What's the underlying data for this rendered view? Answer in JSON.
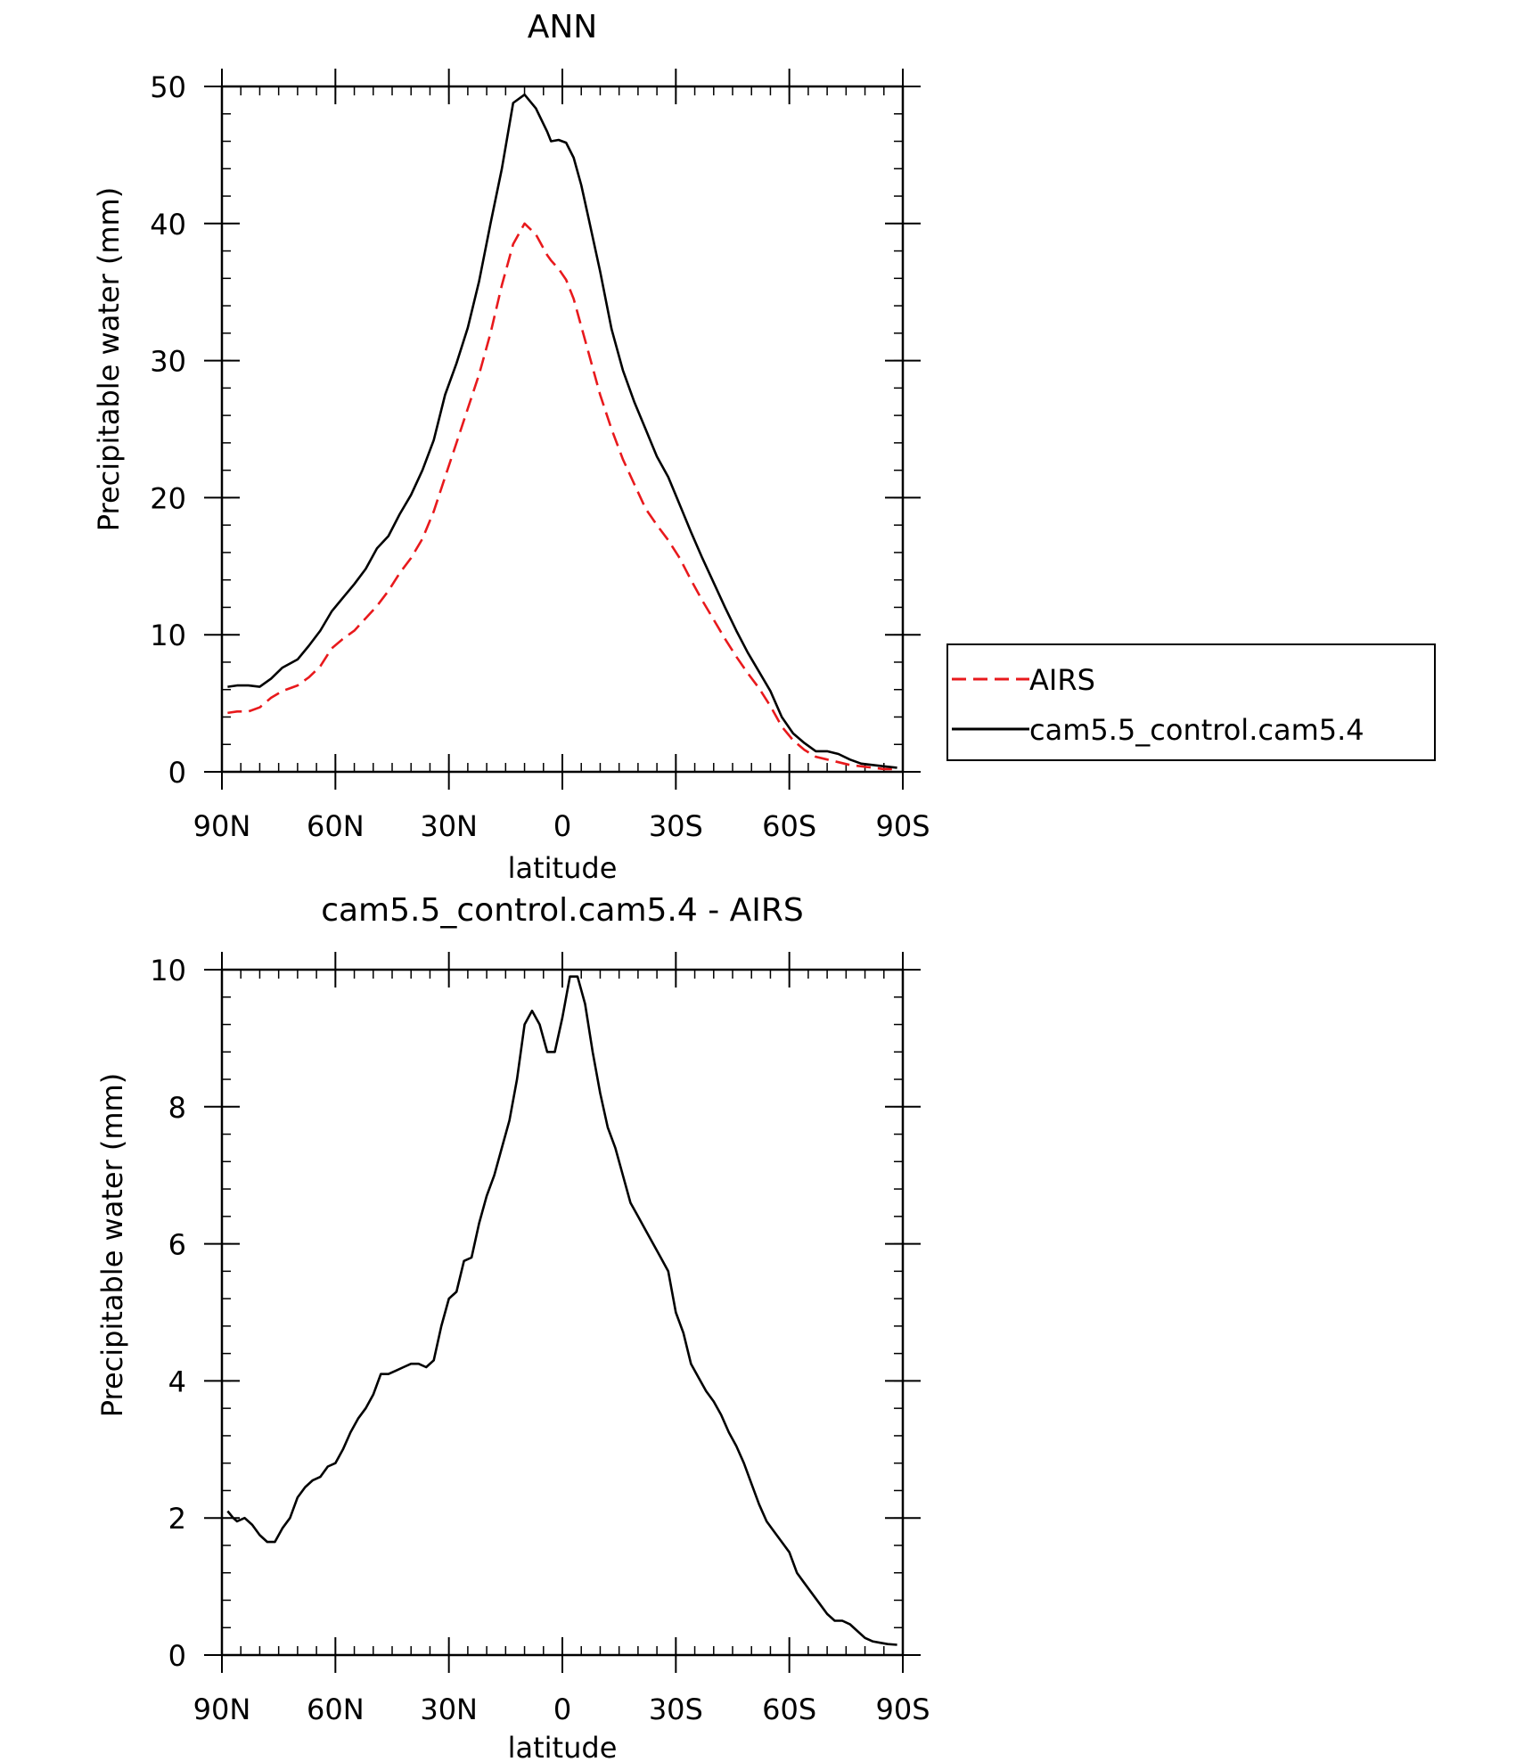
{
  "chart_data": [
    {
      "type": "line",
      "title": "ANN",
      "xlabel": "latitude",
      "ylabel": "Precipitable water (mm)",
      "ylim": [
        0,
        50
      ],
      "xlim": [
        90,
        -90
      ],
      "y_ticks": [
        0,
        10,
        20,
        30,
        40,
        50
      ],
      "y_tick_labels": [
        "0",
        "10",
        "20",
        "30",
        "40",
        "50"
      ],
      "x_ticks": [
        90,
        60,
        30,
        0,
        -30,
        -60,
        -90
      ],
      "x_tick_labels": [
        "90N",
        "60N",
        "30N",
        "0",
        "30S",
        "60S",
        "90S"
      ],
      "legend": {
        "position": "right",
        "entries": [
          "AIRS",
          "cam5.5_control.cam5.4"
        ]
      },
      "series": [
        {
          "name": "AIRS",
          "color": "#e8191c",
          "dash": "dashed",
          "x": [
            88.5,
            86,
            83,
            80,
            77,
            74,
            70,
            67,
            64,
            61,
            58,
            55,
            52,
            49,
            46,
            43,
            40,
            37,
            34,
            31,
            28,
            25,
            22,
            19,
            16,
            13,
            10,
            7,
            4,
            3,
            1,
            -1,
            -3,
            -5,
            -7,
            -10,
            -13,
            -16,
            -19,
            -22,
            -25,
            -28,
            -31,
            -34,
            -37,
            -40,
            -43,
            -46,
            -49,
            -52,
            -55,
            -58,
            -61,
            -64,
            -67,
            -70,
            -73,
            -76,
            -79,
            -82,
            -85,
            -88.5
          ],
          "y": [
            4.3,
            4.4,
            4.4,
            4.7,
            5.4,
            5.9,
            6.3,
            6.9,
            7.7,
            9.0,
            9.7,
            10.3,
            11.2,
            12.1,
            13.2,
            14.5,
            15.6,
            17.0,
            19.0,
            21.5,
            24.0,
            26.5,
            29.0,
            32.0,
            35.5,
            38.5,
            40.0,
            39.2,
            37.7,
            37.3,
            36.7,
            35.9,
            34.5,
            32.5,
            30.5,
            27.5,
            25.0,
            22.8,
            21.0,
            19.2,
            18.0,
            16.9,
            15.6,
            14.0,
            12.5,
            11.1,
            9.7,
            8.4,
            7.2,
            6.1,
            4.8,
            3.3,
            2.3,
            1.6,
            1.1,
            0.9,
            0.7,
            0.5,
            0.4,
            0.3,
            0.2,
            0.2
          ]
        },
        {
          "name": "cam5.5_control.cam5.4",
          "color": "#000000",
          "dash": "solid",
          "x": [
            88.5,
            86,
            83,
            80,
            77,
            74,
            70,
            67,
            64,
            61,
            58,
            55,
            52,
            49,
            46,
            43,
            40,
            37,
            34,
            31,
            28,
            25,
            22,
            19,
            16,
            13,
            10,
            7,
            4,
            3,
            1,
            -1,
            -3,
            -5,
            -7,
            -10,
            -13,
            -16,
            -19,
            -22,
            -25,
            -28,
            -31,
            -34,
            -37,
            -40,
            -43,
            -46,
            -49,
            -52,
            -55,
            -58,
            -61,
            -64,
            -67,
            -70,
            -73,
            -76,
            -79,
            -82,
            -85,
            -88.5
          ],
          "y": [
            6.2,
            6.3,
            6.3,
            6.2,
            6.8,
            7.6,
            8.2,
            9.2,
            10.3,
            11.7,
            12.7,
            13.7,
            14.8,
            16.3,
            17.2,
            18.8,
            20.2,
            22.0,
            24.2,
            27.5,
            29.8,
            32.4,
            35.8,
            40.0,
            44.0,
            48.8,
            49.4,
            48.4,
            46.7,
            46.0,
            46.1,
            45.9,
            44.8,
            42.8,
            40.3,
            36.5,
            32.3,
            29.3,
            27.0,
            25.0,
            23.0,
            21.5,
            19.5,
            17.5,
            15.6,
            13.8,
            12.0,
            10.3,
            8.7,
            7.3,
            5.9,
            4.0,
            2.8,
            2.1,
            1.5,
            1.5,
            1.3,
            0.9,
            0.6,
            0.5,
            0.4,
            0.3
          ]
        }
      ]
    },
    {
      "type": "line",
      "title": "cam5.5_control.cam5.4 - AIRS",
      "xlabel": "latitude",
      "ylabel": "Precipitable water (mm)",
      "ylim": [
        0,
        10
      ],
      "xlim": [
        90,
        -90
      ],
      "y_ticks": [
        0,
        2,
        4,
        6,
        8,
        10
      ],
      "y_tick_labels": [
        "0",
        "2",
        "4",
        "6",
        "8",
        "10"
      ],
      "x_ticks": [
        90,
        60,
        30,
        0,
        -30,
        -60,
        -90
      ],
      "x_tick_labels": [
        "90N",
        "60N",
        "30N",
        "0",
        "30S",
        "60S",
        "90S"
      ],
      "series": [
        {
          "name": "cam5.5_control.cam5.4 - AIRS",
          "color": "#000000",
          "dash": "solid",
          "x": [
            88.5,
            87,
            86,
            84,
            82,
            80,
            78,
            76,
            74,
            72,
            70,
            68,
            66,
            64,
            62,
            60,
            58,
            56,
            54,
            52,
            50,
            48,
            46,
            44,
            42,
            40,
            38,
            36,
            34,
            32,
            30,
            28,
            26,
            24,
            22,
            20,
            18,
            16,
            14,
            12,
            10,
            8,
            6,
            4,
            2,
            0,
            -2,
            -4,
            -6,
            -8,
            -10,
            -12,
            -14,
            -16,
            -18,
            -20,
            -22,
            -24,
            -26,
            -28,
            -30,
            -32,
            -34,
            -36,
            -38,
            -40,
            -42,
            -44,
            -46,
            -48,
            -50,
            -52,
            -54,
            -56,
            -58,
            -60,
            -62,
            -64,
            -66,
            -68,
            -70,
            -72,
            -74,
            -76,
            -78,
            -80,
            -82,
            -84,
            -86,
            -88.5
          ],
          "y": [
            2.1,
            2.0,
            1.95,
            2.0,
            1.9,
            1.75,
            1.65,
            1.65,
            1.85,
            2.0,
            2.3,
            2.45,
            2.55,
            2.6,
            2.75,
            2.8,
            3.0,
            3.25,
            3.45,
            3.6,
            3.8,
            4.1,
            4.1,
            4.15,
            4.2,
            4.25,
            4.25,
            4.2,
            4.3,
            4.8,
            5.2,
            5.3,
            5.75,
            5.8,
            6.3,
            6.7,
            7.0,
            7.4,
            7.8,
            8.4,
            9.2,
            9.4,
            9.2,
            8.8,
            8.8,
            9.3,
            9.9,
            9.9,
            9.5,
            8.8,
            8.2,
            7.7,
            7.4,
            7.0,
            6.6,
            6.4,
            6.2,
            6.0,
            5.8,
            5.6,
            5.0,
            4.7,
            4.25,
            4.05,
            3.85,
            3.7,
            3.5,
            3.25,
            3.05,
            2.8,
            2.5,
            2.2,
            1.95,
            1.8,
            1.65,
            1.5,
            1.2,
            1.05,
            0.9,
            0.75,
            0.6,
            0.5,
            0.5,
            0.45,
            0.35,
            0.25,
            0.2,
            0.18,
            0.16,
            0.15
          ]
        }
      ]
    }
  ]
}
